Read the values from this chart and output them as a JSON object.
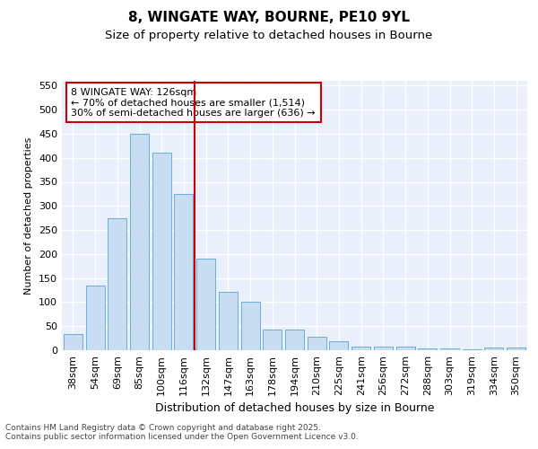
{
  "title1": "8, WINGATE WAY, BOURNE, PE10 9YL",
  "title2": "Size of property relative to detached houses in Bourne",
  "xlabel": "Distribution of detached houses by size in Bourne",
  "ylabel": "Number of detached properties",
  "categories": [
    "38sqm",
    "54sqm",
    "69sqm",
    "85sqm",
    "100sqm",
    "116sqm",
    "132sqm",
    "147sqm",
    "163sqm",
    "178sqm",
    "194sqm",
    "210sqm",
    "225sqm",
    "241sqm",
    "256sqm",
    "272sqm",
    "288sqm",
    "303sqm",
    "319sqm",
    "334sqm",
    "350sqm"
  ],
  "values": [
    33,
    135,
    275,
    450,
    410,
    325,
    190,
    122,
    100,
    43,
    43,
    28,
    18,
    7,
    8,
    8,
    3,
    3,
    2,
    6,
    5
  ],
  "bar_color": "#c9ddf2",
  "bar_edge_color": "#6aaed6",
  "vline_x": 5.5,
  "vline_color": "#cc0000",
  "annotation_text": "8 WINGATE WAY: 126sqm\n← 70% of detached houses are smaller (1,514)\n30% of semi-detached houses are larger (636) →",
  "annotation_box_color": "#ffffff",
  "annotation_box_edge": "#cc0000",
  "ylim": [
    0,
    560
  ],
  "yticks": [
    0,
    50,
    100,
    150,
    200,
    250,
    300,
    350,
    400,
    450,
    500,
    550
  ],
  "footer1": "Contains HM Land Registry data © Crown copyright and database right 2025.",
  "footer2": "Contains public sector information licensed under the Open Government Licence v3.0.",
  "bg_color": "#eaf0fb",
  "fig_bg_color": "#ffffff",
  "grid_color": "#ffffff",
  "title1_fontsize": 11,
  "title2_fontsize": 9.5,
  "xlabel_fontsize": 9,
  "ylabel_fontsize": 8,
  "tick_fontsize": 8,
  "ann_fontsize": 8,
  "footer_fontsize": 6.5
}
